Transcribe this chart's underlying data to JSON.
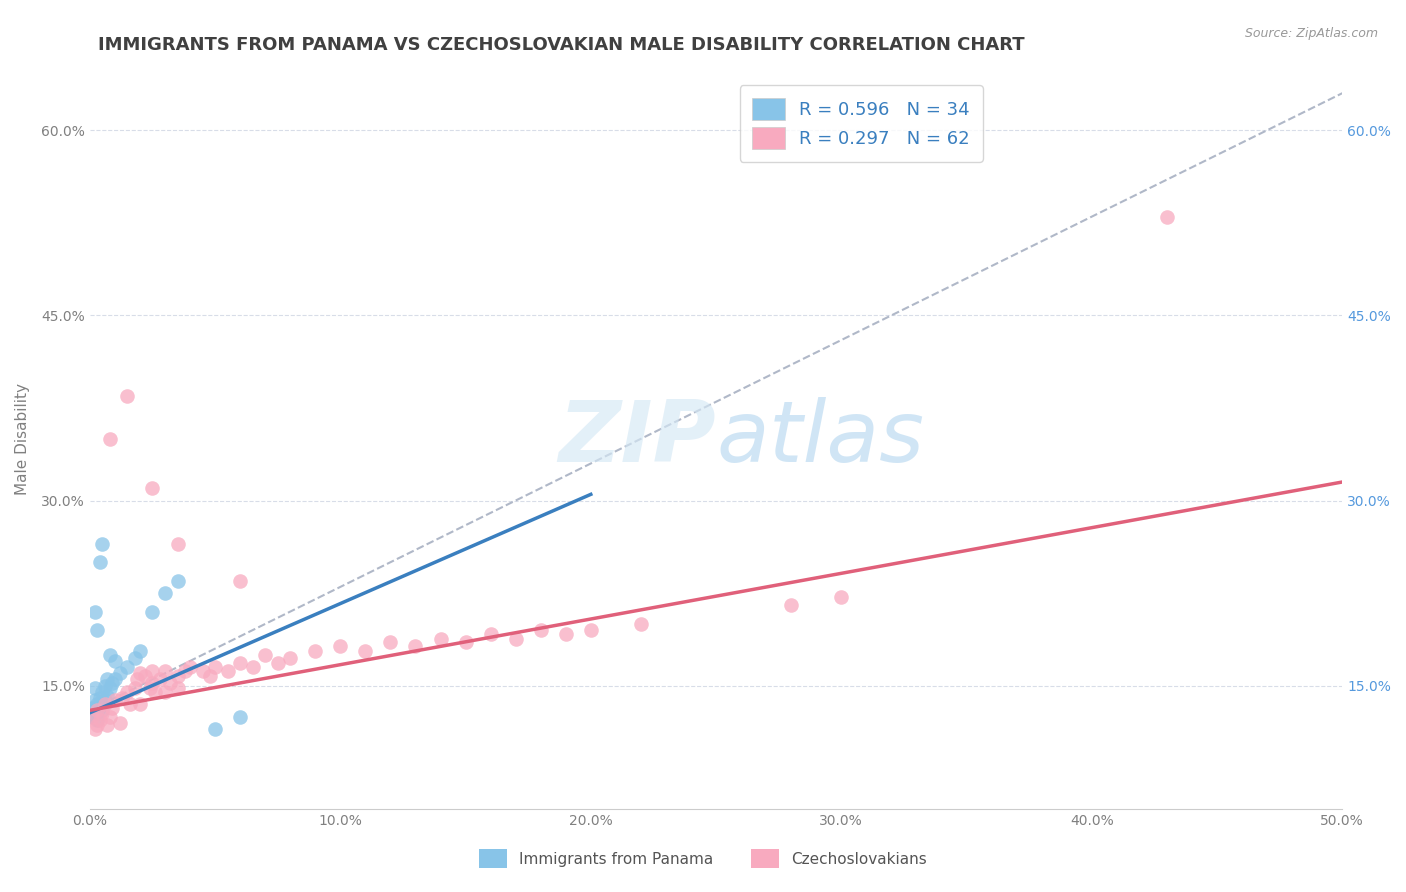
{
  "title": "IMMIGRANTS FROM PANAMA VS CZECHOSLOVAKIAN MALE DISABILITY CORRELATION CHART",
  "source": "Source: ZipAtlas.com",
  "ylabel": "Male Disability",
  "xlim": [
    0.0,
    0.5
  ],
  "ylim": [
    0.05,
    0.65
  ],
  "xtick_labels": [
    "0.0%",
    "10.0%",
    "20.0%",
    "30.0%",
    "40.0%",
    "50.0%"
  ],
  "xtick_values": [
    0.0,
    0.1,
    0.2,
    0.3,
    0.4,
    0.5
  ],
  "ytick_labels": [
    "15.0%",
    "30.0%",
    "45.0%",
    "60.0%"
  ],
  "ytick_values": [
    0.15,
    0.3,
    0.45,
    0.6
  ],
  "panama_color": "#88c4e8",
  "czech_color": "#f8aabf",
  "panama_R": 0.596,
  "panama_N": 34,
  "czech_R": 0.297,
  "czech_N": 62,
  "panama_line_color": "#3a7fbf",
  "czech_line_color": "#e0607a",
  "trendline_dash_color": "#b0b8c8",
  "background_color": "#ffffff",
  "grid_color": "#d8dde8",
  "title_color": "#404040",
  "axis_label_color": "#808080",
  "right_tick_color": "#5599dd",
  "legend_text_color": "#3a7fbf",
  "title_fontsize": 13,
  "axis_label_fontsize": 11,
  "tick_fontsize": 10,
  "legend_fontsize": 13,
  "panama_scatter": [
    [
      0.001,
      0.125
    ],
    [
      0.001,
      0.132
    ],
    [
      0.002,
      0.13
    ],
    [
      0.002,
      0.138
    ],
    [
      0.002,
      0.148
    ],
    [
      0.003,
      0.122
    ],
    [
      0.003,
      0.128
    ],
    [
      0.003,
      0.135
    ],
    [
      0.004,
      0.133
    ],
    [
      0.004,
      0.14
    ],
    [
      0.005,
      0.13
    ],
    [
      0.005,
      0.145
    ],
    [
      0.006,
      0.138
    ],
    [
      0.006,
      0.15
    ],
    [
      0.007,
      0.142
    ],
    [
      0.007,
      0.155
    ],
    [
      0.008,
      0.148
    ],
    [
      0.009,
      0.152
    ],
    [
      0.01,
      0.155
    ],
    [
      0.012,
      0.16
    ],
    [
      0.015,
      0.165
    ],
    [
      0.018,
      0.172
    ],
    [
      0.02,
      0.178
    ],
    [
      0.025,
      0.21
    ],
    [
      0.03,
      0.225
    ],
    [
      0.035,
      0.235
    ],
    [
      0.004,
      0.25
    ],
    [
      0.005,
      0.265
    ],
    [
      0.002,
      0.21
    ],
    [
      0.003,
      0.195
    ],
    [
      0.008,
      0.175
    ],
    [
      0.01,
      0.17
    ],
    [
      0.05,
      0.115
    ],
    [
      0.06,
      0.125
    ]
  ],
  "czech_scatter": [
    [
      0.001,
      0.125
    ],
    [
      0.002,
      0.115
    ],
    [
      0.003,
      0.13
    ],
    [
      0.003,
      0.118
    ],
    [
      0.004,
      0.122
    ],
    [
      0.005,
      0.128
    ],
    [
      0.006,
      0.135
    ],
    [
      0.007,
      0.118
    ],
    [
      0.008,
      0.125
    ],
    [
      0.009,
      0.132
    ],
    [
      0.01,
      0.138
    ],
    [
      0.012,
      0.12
    ],
    [
      0.013,
      0.14
    ],
    [
      0.015,
      0.145
    ],
    [
      0.016,
      0.135
    ],
    [
      0.018,
      0.148
    ],
    [
      0.019,
      0.155
    ],
    [
      0.02,
      0.16
    ],
    [
      0.02,
      0.135
    ],
    [
      0.022,
      0.158
    ],
    [
      0.024,
      0.148
    ],
    [
      0.025,
      0.152
    ],
    [
      0.025,
      0.162
    ],
    [
      0.026,
      0.145
    ],
    [
      0.028,
      0.155
    ],
    [
      0.03,
      0.162
    ],
    [
      0.03,
      0.145
    ],
    [
      0.032,
      0.152
    ],
    [
      0.035,
      0.158
    ],
    [
      0.035,
      0.148
    ],
    [
      0.038,
      0.162
    ],
    [
      0.04,
      0.165
    ],
    [
      0.045,
      0.162
    ],
    [
      0.048,
      0.158
    ],
    [
      0.05,
      0.165
    ],
    [
      0.055,
      0.162
    ],
    [
      0.06,
      0.168
    ],
    [
      0.065,
      0.165
    ],
    [
      0.07,
      0.175
    ],
    [
      0.075,
      0.168
    ],
    [
      0.08,
      0.172
    ],
    [
      0.09,
      0.178
    ],
    [
      0.1,
      0.182
    ],
    [
      0.11,
      0.178
    ],
    [
      0.12,
      0.185
    ],
    [
      0.13,
      0.182
    ],
    [
      0.14,
      0.188
    ],
    [
      0.15,
      0.185
    ],
    [
      0.16,
      0.192
    ],
    [
      0.17,
      0.188
    ],
    [
      0.18,
      0.195
    ],
    [
      0.19,
      0.192
    ],
    [
      0.2,
      0.195
    ],
    [
      0.22,
      0.2
    ],
    [
      0.28,
      0.215
    ],
    [
      0.3,
      0.222
    ],
    [
      0.008,
      0.35
    ],
    [
      0.015,
      0.385
    ],
    [
      0.025,
      0.31
    ],
    [
      0.035,
      0.265
    ],
    [
      0.06,
      0.235
    ],
    [
      0.43,
      0.53
    ]
  ],
  "panama_line_pts": [
    [
      0.0,
      0.128
    ],
    [
      0.2,
      0.305
    ]
  ],
  "czech_line_pts": [
    [
      0.0,
      0.13
    ],
    [
      0.5,
      0.315
    ]
  ]
}
